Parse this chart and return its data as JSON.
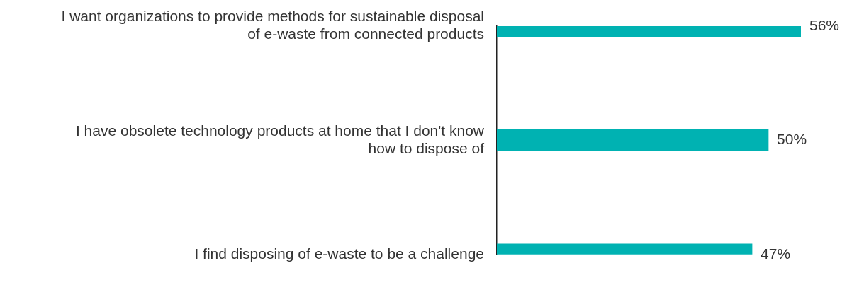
{
  "chart_data": {
    "type": "bar",
    "orientation": "horizontal",
    "categories": [
      "I want organizations to provide methods for sustainable disposal of e-waste from connected products",
      "I have obsolete technology products at home that I don't know how to dispose of",
      "I find disposing of e-waste to be a challenge"
    ],
    "values": [
      56,
      50,
      47
    ],
    "value_labels": [
      "56%",
      "50%",
      "47%"
    ],
    "color": "#00b2b2",
    "tick_labels": "y",
    "grid": false,
    "legend": false
  }
}
